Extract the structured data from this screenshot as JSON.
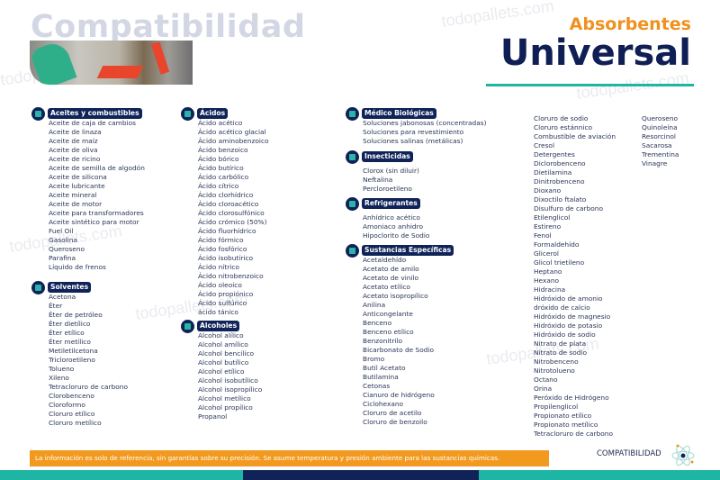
{
  "header": {
    "watermark_title": "Compatibilidad",
    "subtitle": "Absorbentes",
    "title": "Universal",
    "watermark": "todopallets.com"
  },
  "columns": [
    {
      "sections": [
        {
          "title": "Aceites y combustibles",
          "items": [
            "Aceite de caja de cambios",
            "Aceite de linaza",
            "Aceite de maíz",
            "Aceite de oliva",
            "Aceite de ricino",
            "Aceite de semilla de algodón",
            "Aceite de silicona",
            "Aceite lubricante",
            "Aceite mineral",
            "Aceite de motor",
            "Aceite para transformadores",
            "Aceite sintético para motor",
            "Fuel Oil",
            "Gasolina",
            "Queroseno",
            "Parafina",
            "Líquido de frenos"
          ]
        },
        {
          "title": "Solventes",
          "items": [
            "Acetona",
            "Éter",
            "Éter de petróleo",
            "Éter dietílico",
            "Éter etílico",
            "Éter metílico",
            "Metiletilcetona",
            "Tricloroetileno",
            "Tolueno",
            "Xileno",
            "Tetracloruro de carbono",
            "Clorobenceno",
            "Cloroformo",
            "Cloruro etílico",
            "Cloruro metílico"
          ]
        }
      ]
    },
    {
      "sections": [
        {
          "title": "Ácidos",
          "items": [
            "Ácido acético",
            "Ácido acético glacial",
            "Ácido aminobenzoico",
            "Ácido benzoico",
            "Ácido bórico",
            "Ácido butírico",
            "Ácido carbólico",
            "Ácido cítrico",
            "Ácido clorhídrico",
            "Ácido cloroacético",
            "Ácido clorosulfónico",
            "Ácido crómico (50%)",
            "Ácido fluorhídrico",
            "Ácido fórmico",
            "Ácido fosfórico",
            "Ácido isobutírico",
            "Ácido nítrico",
            "Ácido nitrobenzoico",
            "Ácido oleoico",
            "Ácido propiónico",
            "Ácido sulfúrico",
            "ácido tánico"
          ]
        },
        {
          "title": "Alcoholes",
          "items": [
            "Alcohol alílico",
            "Alcohol amílico",
            "Alcohol bencílico",
            "Alcohol butílico",
            "Alcohol etílico",
            "Alcohol isobutílico",
            "Alcohol isopropílico",
            "Alcohol metílico",
            "Alcohol propílico",
            "Propanol"
          ]
        }
      ]
    },
    {
      "sections": [
        {
          "title": "Médico Biológicas",
          "items": [
            "Soluciones jabonosas (concentradas)",
            "Soluciones para revestimiento",
            "Soluciones salinas (metálicas)"
          ]
        },
        {
          "title": "Insecticidas",
          "items": [
            "Clorox (sin diluir)",
            "Neftalina",
            "Percloroetileno"
          ]
        },
        {
          "title": "Refrigerantes",
          "items": [
            "Anhídrico acético",
            "Amoniaco anhidro",
            "Hipoclorito de Sodio"
          ]
        },
        {
          "title": "Sustancias Específicas",
          "items": [
            "Acetaldehído",
            "Acetato de amilo",
            "Acetato de vinilo",
            "Acetato etílico",
            "Acetato isopropílico",
            "Anilina",
            "Anticongelante",
            "Benceno",
            "Benceno etílico",
            "Benzonitrilo",
            "Bicarbonato de Sodio",
            "Bromo",
            "Butil Acetato",
            "Butilamina",
            "Cetonas",
            "Cianuro de hidrógeno",
            "Ciclohexano",
            "Cloruro de acetilo",
            "Cloruro de benzoilo"
          ]
        }
      ]
    },
    {
      "items": [
        "Cloruro de sodio",
        "Cloruro estánnico",
        "Combustible de aviación",
        "Cresol",
        "Detergentes",
        "Diclorobenceno",
        "Dietilamina",
        "Dinitrobenceno",
        "Dioxano",
        "Dixoctilo ftalato",
        "Disulfuro de carbono",
        "Etilenglicol",
        "Estireno",
        "Fenol",
        "Formaldehído",
        "Glicerol",
        "Glicol trietileno",
        "Heptano",
        "Hexano",
        "Hidracina",
        "Hidróxido de amonio",
        "dróxido de calcio",
        "Hidróxido de magnesio",
        "Hidróxido de potasio",
        "Hidróxido de sodio",
        "Nitrato de plata",
        "Nitrato de sodio",
        "Nitrobenceno",
        "Nitrotolueno",
        "Octano",
        "Orina",
        "Peróxido de Hidrógeno",
        "Propilenglicol",
        "Propionato etílico",
        "Propionato metílico",
        "Tetracloruro de carbono"
      ]
    },
    {
      "items": [
        "Queroseno",
        "Quinoleína",
        "Resorcinol",
        "Sacarosa",
        "Trementina",
        "Vinagre"
      ]
    }
  ],
  "footer": {
    "disclaimer": "La información es solo de referencia, sin garantías sobre su precisión. Se asume temperatura y presión ambiente para las sustancias químicas.",
    "label": "COMPATIBILIDAD"
  },
  "colors": {
    "navy": "#0f2358",
    "orange": "#f29a1f",
    "teal": "#1fb5a5"
  }
}
